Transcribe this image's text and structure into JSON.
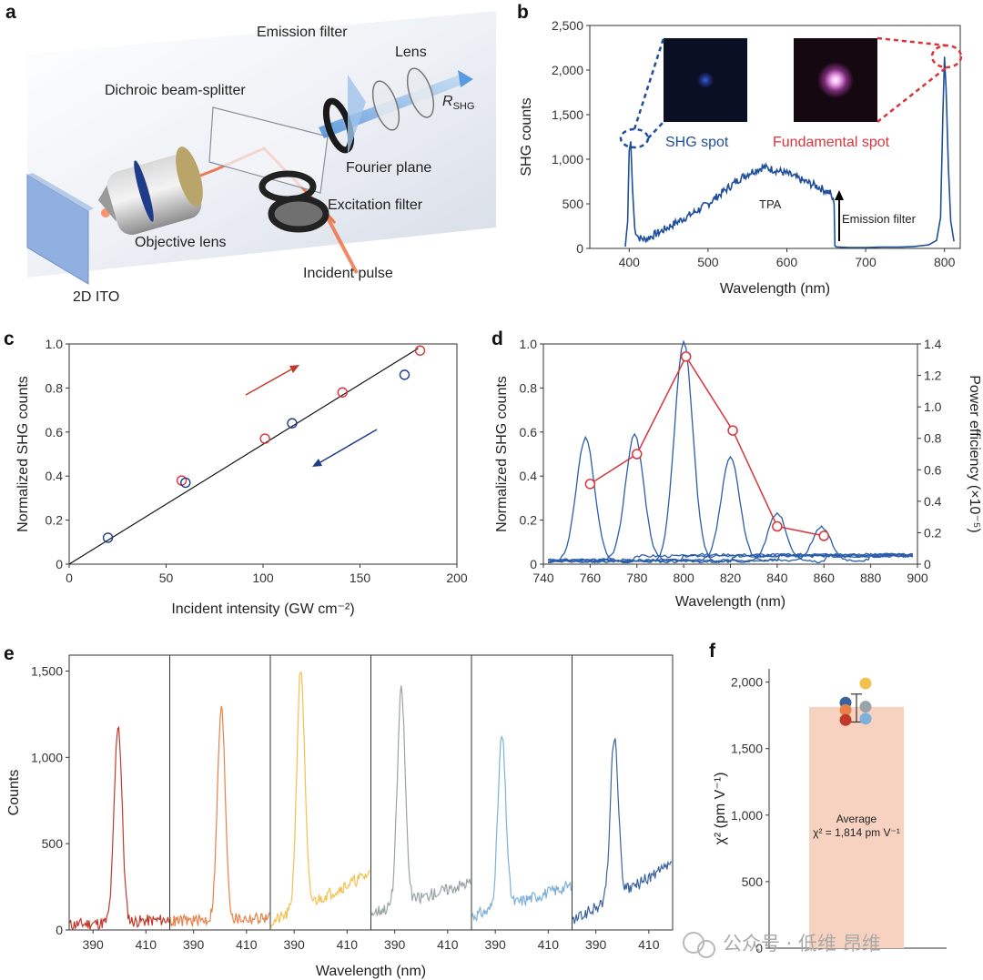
{
  "panel_labels": {
    "a": "a",
    "b": "b",
    "c": "c",
    "d": "d",
    "e": "e",
    "f": "f"
  },
  "schematic": {
    "labels": [
      "Emission filter",
      "Lens",
      "Dichroic beam-splitter",
      "Fourier plane",
      "Excitation filter",
      "Objective lens",
      "Incident pulse",
      "2D ITO"
    ],
    "r_main": "R",
    "r_sub": "SHG"
  },
  "watermark": "公众号 · 低维 昂维",
  "colors": {
    "blue": "#1f4e9a",
    "red": "#d8343b",
    "bar": "#f7d2c0"
  },
  "chart_data": [
    {
      "panel": "b",
      "type": "line",
      "xlabel": "Wavelength (nm)",
      "ylabel": "SHG counts",
      "xlim": [
        350,
        820
      ],
      "ylim": [
        0,
        2500
      ],
      "xticks": [
        400,
        500,
        600,
        700,
        800
      ],
      "yticks": [
        0,
        500,
        1000,
        1500,
        2000,
        2500
      ],
      "ytick_labels": [
        "0",
        "500",
        "1,000",
        "1,500",
        "2,000",
        "2,500"
      ],
      "annotations": [
        "SHG spot",
        "Fundamental spot",
        "TPA",
        "Emission filter"
      ],
      "series": [
        {
          "x": [
            395,
            398,
            400,
            402,
            404,
            407,
            412,
            420,
            440,
            460,
            480,
            500,
            520,
            540,
            555,
            570,
            585,
            600,
            620,
            640,
            655,
            660,
            661,
            662,
            665,
            680,
            700,
            720,
            740,
            760,
            780,
            790,
            795,
            798,
            800,
            802,
            805,
            808,
            812
          ],
          "y": [
            20,
            300,
            1100,
            1200,
            700,
            220,
            120,
            100,
            190,
            290,
            390,
            500,
            640,
            780,
            860,
            910,
            880,
            840,
            760,
            690,
            620,
            500,
            30,
            20,
            15,
            10,
            10,
            15,
            15,
            20,
            40,
            90,
            350,
            1500,
            2150,
            1800,
            900,
            300,
            80
          ]
        }
      ]
    },
    {
      "panel": "c",
      "type": "scatter",
      "xlabel": "Incident intensity (GW cm⁻²)",
      "ylabel": "Normalized SHG counts",
      "xlim": [
        0,
        200
      ],
      "ylim": [
        0,
        1.0
      ],
      "xticks": [
        0,
        50,
        100,
        150,
        200
      ],
      "yticks": [
        0,
        0.2,
        0.4,
        0.6,
        0.8,
        1.0
      ],
      "ytick_labels": [
        "0",
        "0.2",
        "0.4",
        "0.6",
        "0.8",
        "1.0"
      ],
      "fit_line": {
        "x": [
          0,
          180
        ],
        "y": [
          0,
          0.98
        ]
      },
      "series": [
        {
          "color": "red",
          "x": [
            58,
            101,
            141,
            181
          ],
          "y": [
            0.38,
            0.57,
            0.78,
            0.97
          ]
        },
        {
          "color": "blue",
          "x": [
            20,
            60,
            115,
            173
          ],
          "y": [
            0.12,
            0.37,
            0.64,
            0.86
          ]
        }
      ]
    },
    {
      "panel": "d",
      "type": "line",
      "xlabel": "Wavelength (nm)",
      "ylabel": "Normalized SHG counts",
      "ylabel_right": "Power efficiency (×10⁻⁵)",
      "xlim": [
        740,
        900
      ],
      "ylim": [
        0,
        1.0
      ],
      "ylim_right": [
        0,
        1.4
      ],
      "xticks": [
        740,
        760,
        780,
        800,
        820,
        840,
        860,
        880,
        900
      ],
      "yticks": [
        0,
        0.2,
        0.4,
        0.6,
        0.8,
        1.0
      ],
      "ytick_labels": [
        "0",
        "0.2",
        "0.4",
        "0.6",
        "0.8",
        "1.0"
      ],
      "yticks_right": [
        0,
        0.2,
        0.4,
        0.6,
        0.8,
        1.0,
        1.2,
        1.4
      ],
      "ytick_labels_right": [
        "0",
        "0.2",
        "0.4",
        "0.6",
        "0.8",
        "1.0",
        "1.2",
        "1.4"
      ],
      "peaks": [
        {
          "center": 758,
          "height": 0.56
        },
        {
          "center": 779,
          "height": 0.57
        },
        {
          "center": 800,
          "height": 1.0
        },
        {
          "center": 820,
          "height": 0.47
        },
        {
          "center": 840,
          "height": 0.22
        },
        {
          "center": 859,
          "height": 0.15
        }
      ],
      "efficiency": {
        "x": [
          760,
          780,
          801,
          821,
          840,
          860
        ],
        "y": [
          0.51,
          0.7,
          1.32,
          0.85,
          0.24,
          0.18
        ]
      }
    },
    {
      "panel": "e",
      "type": "line",
      "xlabel": "Wavelength (nm)",
      "ylabel": "Counts",
      "ylim": [
        0,
        1500
      ],
      "yticks": [
        0,
        500,
        1000,
        1500
      ],
      "ytick_labels": [
        "0",
        "500",
        "1,000",
        "1,500"
      ],
      "subplots": [
        {
          "color": "#c0392b",
          "xticks": [
            390,
            410
          ],
          "peak_x": 399.5,
          "peak": 1190,
          "base_left": 30,
          "base_right": 60
        },
        {
          "color": "#e8804a",
          "xticks": [
            390,
            410
          ],
          "peak_x": 400.5,
          "peak": 1280,
          "base_left": 50,
          "base_right": 70
        },
        {
          "color": "#f2c14e",
          "xticks": [
            390,
            410
          ],
          "peak_x": 392.5,
          "peak": 1510,
          "base_left": 40,
          "base_right": 330
        },
        {
          "color": "#9aa3a6",
          "xticks": [
            390,
            410
          ],
          "peak_x": 392.5,
          "peak": 1390,
          "base_left": 100,
          "base_right": 280
        },
        {
          "color": "#7eb0d9",
          "xticks": [
            390,
            410
          ],
          "peak_x": 392.5,
          "peak": 1120,
          "base_left": 80,
          "base_right": 260
        },
        {
          "color": "#3b63a0",
          "xticks": [
            390,
            410
          ],
          "peak_x": 397,
          "peak": 1120,
          "base_left": 50,
          "base_right": 380
        }
      ]
    },
    {
      "panel": "f",
      "type": "bar",
      "ylabel": "χ² (pm V⁻¹)",
      "ylim": [
        0,
        2100
      ],
      "yticks": [
        0,
        500,
        1000,
        1500,
        2000
      ],
      "ytick_labels": [
        "0",
        "500",
        "1,000",
        "1,500",
        "2,000"
      ],
      "bar_value": 1814,
      "error": [
        1700,
        1910
      ],
      "points": [
        {
          "color": "#f2c14e",
          "value": 1990
        },
        {
          "color": "#3b63a0",
          "value": 1845
        },
        {
          "color": "#9aa3a6",
          "value": 1815
        },
        {
          "color": "#e8804a",
          "value": 1790
        },
        {
          "color": "#c0392b",
          "value": 1715
        },
        {
          "color": "#7eb0d9",
          "value": 1725
        }
      ],
      "label_line1": "Average",
      "label_line2": "χ² = 1,814 pm V⁻¹"
    }
  ]
}
